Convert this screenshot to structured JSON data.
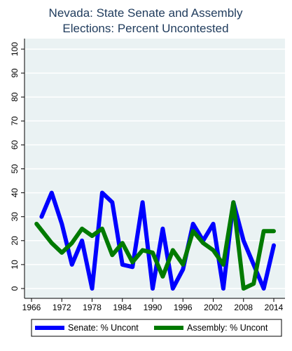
{
  "chart_data": {
    "type": "line",
    "title_lines": [
      "Nevada: State Senate and Assembly",
      "Elections: Percent Uncontested"
    ],
    "xlabel": "",
    "ylabel": "",
    "xlim": [
      1966,
      2014
    ],
    "ylim": [
      0,
      100
    ],
    "x_ticks": [
      1966,
      1972,
      1978,
      1984,
      1990,
      1996,
      2002,
      2008,
      2014
    ],
    "y_ticks": [
      0,
      10,
      20,
      30,
      40,
      50,
      60,
      70,
      80,
      90,
      100
    ],
    "grid": true,
    "legend_position": "bottom",
    "series": [
      {
        "name": "Senate: % Uncont",
        "color": "#0000ff",
        "points": [
          [
            1968,
            30
          ],
          [
            1970,
            40
          ],
          [
            1972,
            27
          ],
          [
            1974,
            10
          ],
          [
            1976,
            20
          ],
          [
            1978,
            0
          ],
          [
            1980,
            40
          ],
          [
            1982,
            36
          ],
          [
            1984,
            10
          ],
          [
            1986,
            9
          ],
          [
            1988,
            36
          ],
          [
            1990,
            0
          ],
          [
            1992,
            25
          ],
          [
            1994,
            0
          ],
          [
            1996,
            8
          ],
          [
            1998,
            27
          ],
          [
            2000,
            20
          ],
          [
            2002,
            27
          ],
          [
            2004,
            0
          ],
          [
            2006,
            36
          ],
          [
            2008,
            20
          ],
          [
            2010,
            10
          ],
          [
            2012,
            0
          ],
          [
            2014,
            18
          ]
        ]
      },
      {
        "name": "Assembly: % Uncont",
        "color": "#007a00",
        "points": [
          [
            1967,
            27
          ],
          [
            1970,
            19
          ],
          [
            1972,
            15
          ],
          [
            1974,
            19
          ],
          [
            1976,
            25
          ],
          [
            1978,
            22
          ],
          [
            1980,
            25
          ],
          [
            1982,
            14
          ],
          [
            1984,
            19
          ],
          [
            1986,
            11
          ],
          [
            1988,
            16
          ],
          [
            1990,
            15
          ],
          [
            1992,
            5
          ],
          [
            1994,
            16
          ],
          [
            1996,
            10
          ],
          [
            1998,
            24
          ],
          [
            2000,
            19
          ],
          [
            2002,
            16
          ],
          [
            2004,
            10
          ],
          [
            2006,
            36
          ],
          [
            2008,
            0
          ],
          [
            2010,
            2
          ],
          [
            2012,
            24
          ],
          [
            2014,
            24
          ]
        ]
      }
    ]
  }
}
